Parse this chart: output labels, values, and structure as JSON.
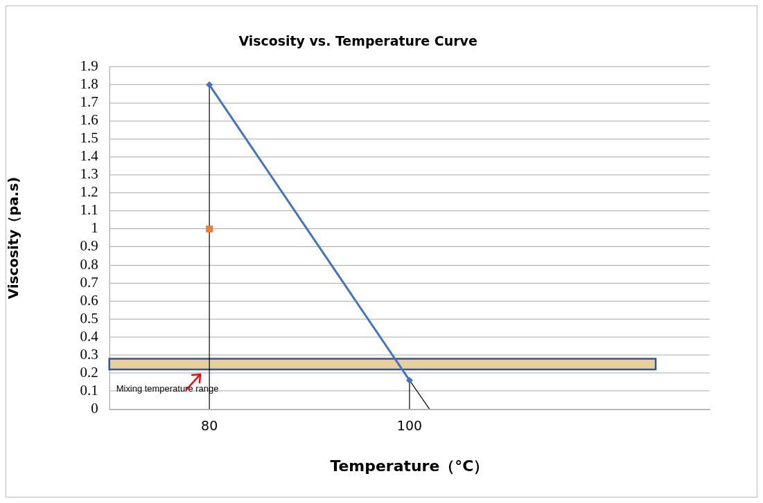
{
  "chart_data": {
    "type": "line",
    "title": "Viscosity vs. Temperature Curve",
    "xlabel": "Temperature（°C）",
    "ylabel": "Viscosity（pa.s)",
    "xlim": [
      70,
      130
    ],
    "xticks": [
      80,
      100
    ],
    "ylim": [
      0,
      1.9
    ],
    "yticks": [
      0,
      0.1,
      0.2,
      0.3,
      0.4,
      0.5,
      0.6,
      0.7,
      0.8,
      0.9,
      1,
      1.1,
      1.2,
      1.3,
      1.4,
      1.5,
      1.6,
      1.7,
      1.8,
      1.9
    ],
    "grid": "y",
    "legend": false,
    "series": [
      {
        "color": "#000000",
        "marker": "none",
        "x": [
          80,
          80
        ],
        "values": [
          0,
          1.8
        ]
      },
      {
        "color": "#000000",
        "marker": "none",
        "x": [
          100,
          100
        ],
        "values": [
          0,
          0.16
        ]
      },
      {
        "color": "#000000",
        "marker": "none",
        "x": [
          100,
          102
        ],
        "values": [
          0.16,
          0
        ]
      },
      {
        "color": "#4472c4",
        "marker": "diamond",
        "x": [
          80,
          100
        ],
        "values": [
          1.8,
          0.16
        ]
      },
      {
        "type": "scatter",
        "color": "#ed7d31",
        "marker": "square",
        "x": [
          80
        ],
        "values": [
          1
        ]
      }
    ],
    "bands": [
      {
        "axis": "y",
        "from": 0.22,
        "to": 0.28,
        "color": "#e9d09a"
      }
    ],
    "annotations": [
      "Mixing temperature range"
    ]
  }
}
